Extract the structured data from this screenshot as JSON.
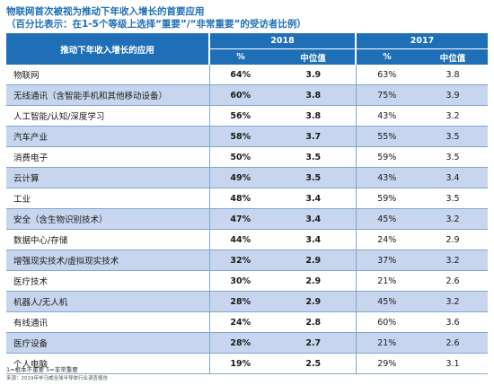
{
  "title": "物联网首次被视为推动下年收入增长的首要应用",
  "subtitle": "（百分比表示：在1-5个等级上选择“重要”/“非常重要”的受访者比例）",
  "table": {
    "category_header": "推动下年收入增长的应用",
    "years": [
      "2018",
      "2017"
    ],
    "sub_headers": [
      "%",
      "中位值",
      "%",
      "中位值"
    ],
    "rows": [
      {
        "name": "物联网",
        "p2018": "64%",
        "m2018": "3.9",
        "p2017": "63%",
        "m2017": "3.8"
      },
      {
        "name": "无线通讯（含智能手机和其他移动设备）",
        "p2018": "60%",
        "m2018": "3.8",
        "p2017": "75%",
        "m2017": "3.9"
      },
      {
        "name": "人工智能/认知/深度学习",
        "p2018": "56%",
        "m2018": "3.8",
        "p2017": "43%",
        "m2017": "3.2"
      },
      {
        "name": "汽车产业",
        "p2018": "58%",
        "m2018": "3.7",
        "p2017": "55%",
        "m2017": "3.5"
      },
      {
        "name": "消费电子",
        "p2018": "50%",
        "m2018": "3.5",
        "p2017": "59%",
        "m2017": "3.5"
      },
      {
        "name": "云计算",
        "p2018": "49%",
        "m2018": "3.5",
        "p2017": "43%",
        "m2017": "3.4"
      },
      {
        "name": "工业",
        "p2018": "48%",
        "m2018": "3.4",
        "p2017": "59%",
        "m2017": "3.5"
      },
      {
        "name": "安全（含生物识别技术）",
        "p2018": "47%",
        "m2018": "3.4",
        "p2017": "45%",
        "m2017": "3.2"
      },
      {
        "name": "数据中心/存储",
        "p2018": "44%",
        "m2018": "3.4",
        "p2017": "24%",
        "m2017": "2.9"
      },
      {
        "name": "增强现实技术/虚拟现实技术",
        "p2018": "32%",
        "m2018": "2.9",
        "p2017": "37%",
        "m2017": "3.2"
      },
      {
        "name": "医疗技术",
        "p2018": "30%",
        "m2018": "2.9",
        "p2017": "21%",
        "m2017": "2.6"
      },
      {
        "name": "机器人/无人机",
        "p2018": "28%",
        "m2018": "2.9",
        "p2017": "45%",
        "m2017": "3.2"
      },
      {
        "name": "有线通讯",
        "p2018": "24%",
        "m2018": "2.8",
        "p2017": "60%",
        "m2017": "3.6"
      },
      {
        "name": "医疗设备",
        "p2018": "28%",
        "m2018": "2.7",
        "p2017": "21%",
        "m2017": "2.6"
      },
      {
        "name": "个人电脑",
        "p2018": "19%",
        "m2018": "2.5",
        "p2017": "29%",
        "m2017": "3.1"
      }
    ]
  },
  "footnote": "1=根本不重要 5=非常重要",
  "source": "来源：2019年毕马威全球半导体行业调查报告",
  "colors": {
    "header_bg": "#1f6fb6",
    "title": "#1f6fb6",
    "row_alt": "#c7d6ee"
  }
}
